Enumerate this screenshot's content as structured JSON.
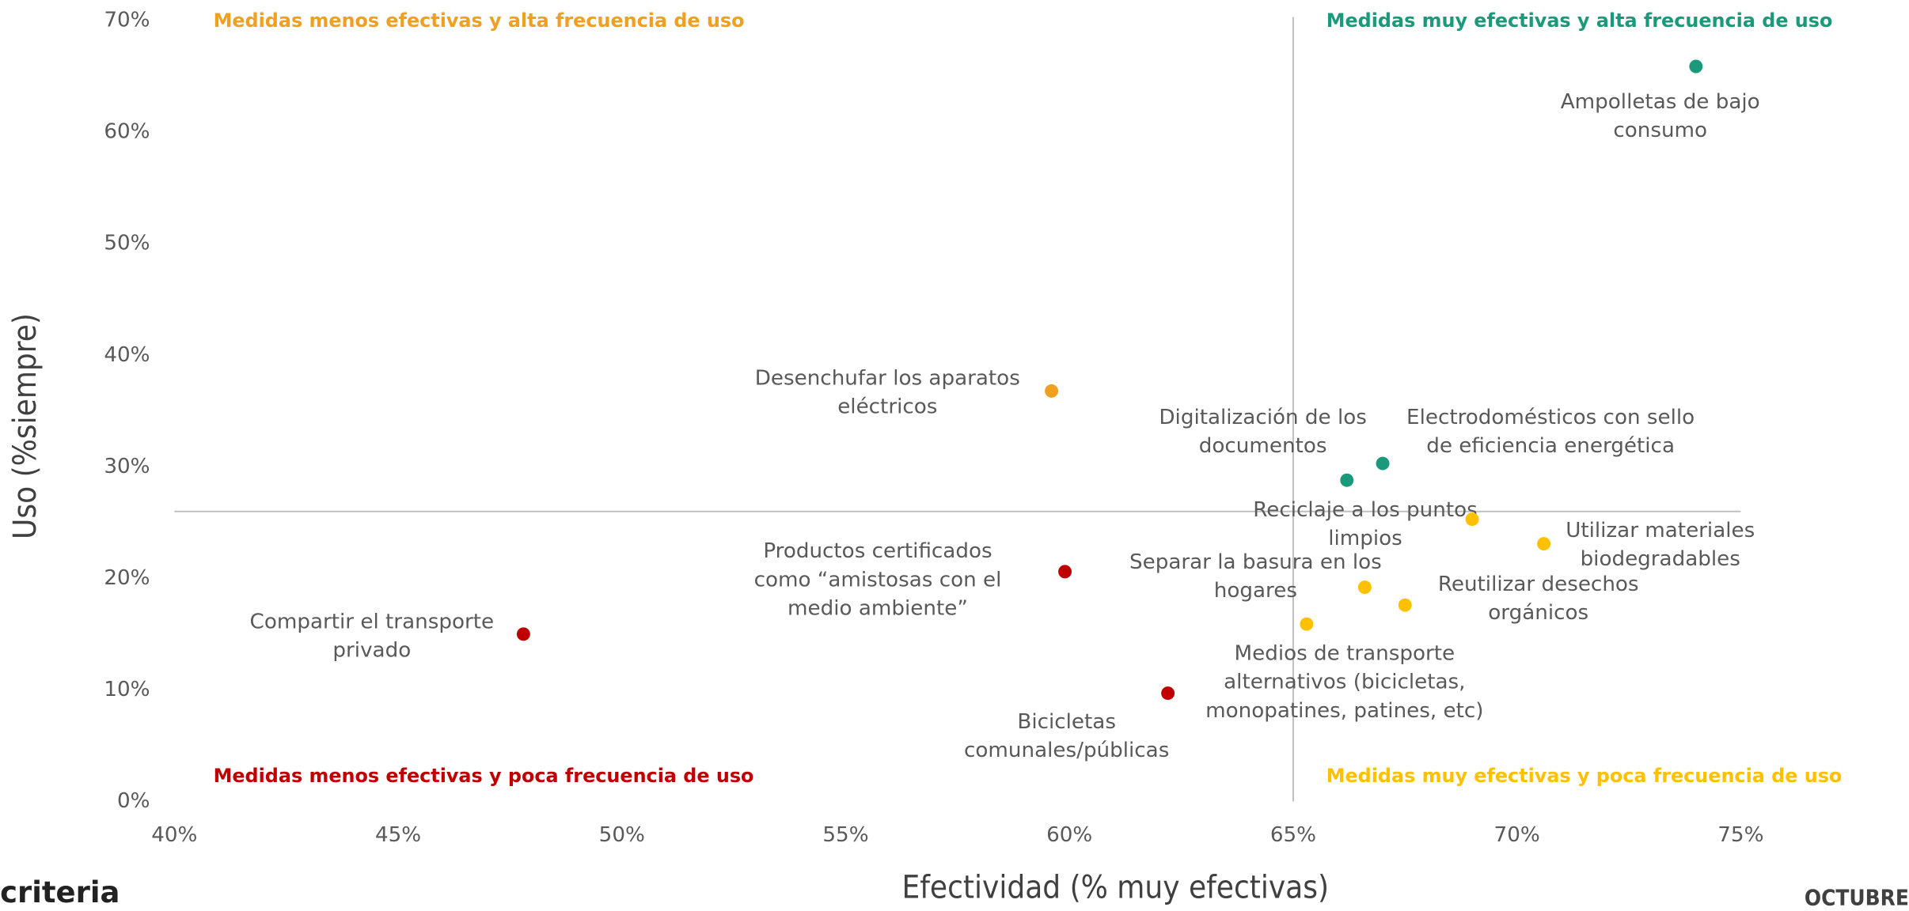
{
  "chart_data": {
    "type": "scatter",
    "x_label": "Efectividad (% muy efectivas)",
    "y_label": "Uso (%siempre)",
    "xlim": [
      40,
      75
    ],
    "ylim": [
      0,
      70
    ],
    "xticks": [
      {
        "value": 40,
        "label": "40%"
      },
      {
        "value": 45,
        "label": "45%"
      },
      {
        "value": 50,
        "label": "50%"
      },
      {
        "value": 55,
        "label": "55%"
      },
      {
        "value": 60,
        "label": "60%"
      },
      {
        "value": 65,
        "label": "65%"
      },
      {
        "value": 70,
        "label": "70%"
      },
      {
        "value": 75,
        "label": "75%"
      }
    ],
    "yticks": [
      {
        "value": 0,
        "label": "0%"
      },
      {
        "value": 10,
        "label": "10%"
      },
      {
        "value": 20,
        "label": "20%"
      },
      {
        "value": 30,
        "label": "30%"
      },
      {
        "value": 40,
        "label": "40%"
      },
      {
        "value": 50,
        "label": "50%"
      },
      {
        "value": 60,
        "label": "60%"
      },
      {
        "value": 70,
        "label": "70%"
      }
    ],
    "quadrant_x": 65,
    "quadrant_y": 26,
    "quadrant_labels": [
      {
        "text": "Medidas menos efectivas y alta frecuencia de uso",
        "color": "#f0a020"
      },
      {
        "text": "Medidas muy efectivas y alta frecuencia de uso",
        "color": "#1a9a7a"
      },
      {
        "text": "Medidas menos efectivas y poca frecuencia de uso",
        "color": "#c00000"
      },
      {
        "text": "Medidas muy efectivas y poca frecuencia de uso",
        "color": "#ffc000"
      }
    ],
    "points": [
      {
        "label": [
          "Ampolletas de bajo",
          "consumo"
        ],
        "x": 74.0,
        "y": 65.9,
        "color": "#1a9a7a"
      },
      {
        "label": [
          "Desenchufar los aparatos",
          "eléctricos"
        ],
        "x": 59.6,
        "y": 36.8,
        "color": "#f0a020"
      },
      {
        "label": [
          "Digitalización de los",
          "documentos"
        ],
        "x": 66.2,
        "y": 28.8,
        "color": "#1a9a7a"
      },
      {
        "label": [
          "Electrodomésticos con sello",
          "de eficiencia energética"
        ],
        "x": 67.0,
        "y": 30.3,
        "color": "#1a9a7a"
      },
      {
        "label": [
          "Reciclaje a los puntos",
          "limpios"
        ],
        "x": 69.0,
        "y": 25.3,
        "color": "#ffc000"
      },
      {
        "label": [
          "Utilizar materiales",
          "biodegradables"
        ],
        "x": 70.6,
        "y": 23.1,
        "color": "#ffc000"
      },
      {
        "label": [
          "Separar la basura en los",
          "hogares"
        ],
        "x": 66.6,
        "y": 19.2,
        "color": "#ffc000"
      },
      {
        "label": [
          "Reutilizar desechos",
          "orgánicos"
        ],
        "x": 67.5,
        "y": 17.6,
        "color": "#ffc000"
      },
      {
        "label": [
          "Medios de transporte",
          "alternativos (bicicletas,",
          "monopatines, patines, etc)"
        ],
        "x": 65.3,
        "y": 15.9,
        "color": "#ffc000"
      },
      {
        "label": [
          "Productos certificados",
          "como “amistosas con el",
          "medio ambiente”"
        ],
        "x": 59.9,
        "y": 20.6,
        "color": "#c00000"
      },
      {
        "label": [
          "Compartir el transporte",
          "privado"
        ],
        "x": 47.8,
        "y": 15.0,
        "color": "#c00000"
      },
      {
        "label": [
          "Bicicletas",
          "comunales/públicas"
        ],
        "x": 62.2,
        "y": 9.7,
        "color": "#c00000"
      }
    ]
  },
  "footer": {
    "logo": "criteria",
    "date": "OCTUBRE"
  }
}
